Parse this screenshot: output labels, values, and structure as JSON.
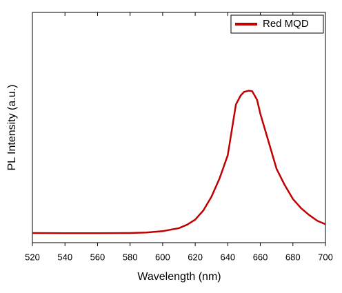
{
  "chart_data": {
    "type": "line",
    "xlabel": "Wavelength (nm)",
    "ylabel": "PL Intensity (a.u.)",
    "x": [
      520,
      540,
      560,
      580,
      590,
      600,
      610,
      615,
      620,
      625,
      630,
      635,
      640,
      645,
      648,
      650,
      653,
      655,
      658,
      660,
      665,
      670,
      675,
      680,
      685,
      690,
      695,
      700
    ],
    "series": [
      {
        "name": "Red MQD",
        "color": "#c00000",
        "values": [
          0.042,
          0.041,
          0.041,
          0.042,
          0.044,
          0.05,
          0.063,
          0.078,
          0.1,
          0.14,
          0.2,
          0.28,
          0.38,
          0.6,
          0.64,
          0.655,
          0.66,
          0.658,
          0.62,
          0.56,
          0.44,
          0.32,
          0.25,
          0.19,
          0.15,
          0.12,
          0.095,
          0.08
        ]
      }
    ],
    "xlim": [
      520,
      700
    ],
    "xticks": [
      520,
      540,
      560,
      580,
      600,
      620,
      640,
      660,
      680,
      700
    ],
    "ylim": [
      0,
      1
    ],
    "legend": "upper right"
  }
}
